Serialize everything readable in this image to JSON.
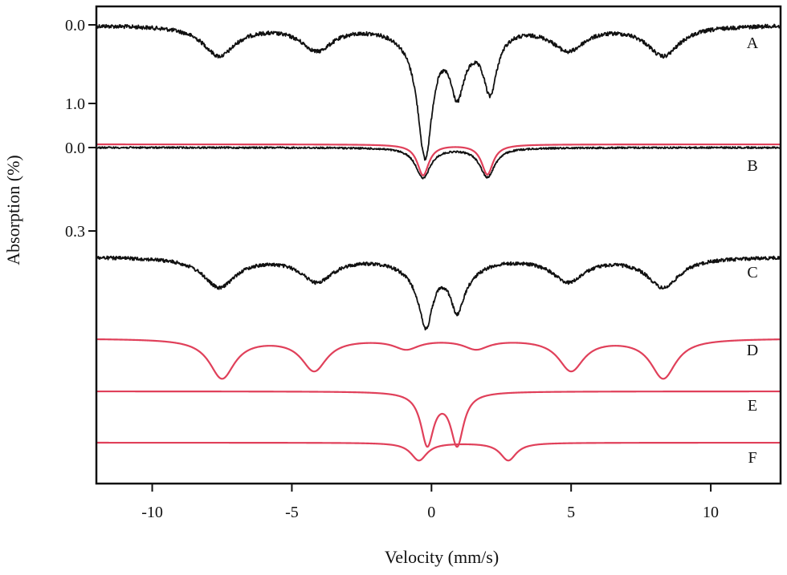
{
  "chart_data": {
    "type": "line",
    "title": "",
    "xlabel": "Velocity (mm/s)",
    "ylabel": "Absorption (%)",
    "xlim": [
      -12,
      12.5
    ],
    "x_ticks": [
      -10,
      -5,
      0,
      5,
      10
    ],
    "x_tick_labels": [
      "-10",
      "-5",
      "0",
      "5",
      "10"
    ],
    "y_scale_markers": [
      {
        "label": "0.0",
        "spectrum": "A",
        "value": 0.0
      },
      {
        "label": "1.0",
        "spectrum": "A",
        "value": 1.0
      },
      {
        "label": "0.0",
        "spectrum": "B",
        "value": 0.0
      },
      {
        "label": "0.3",
        "spectrum": "B",
        "value": 0.3
      }
    ],
    "grid": false,
    "legend": "none",
    "colors": {
      "measured": "#111111",
      "fit": "#e0405a"
    },
    "series": [
      {
        "name": "A",
        "style": "measured",
        "baseline": 0.0,
        "noise": 0.025,
        "unit_scale": 1.0,
        "components": [
          {
            "kind": "sextet",
            "center": 0.37,
            "positions": [
              -7.6,
              -4.1,
              -0.6,
              1.3,
              4.9,
              8.3
            ],
            "depths": [
              0.38,
              0.3,
              0.12,
              0.12,
              0.3,
              0.38
            ],
            "width": 0.7
          },
          {
            "kind": "doublet",
            "center": 0.38,
            "positions": [
              -0.2,
              0.92
            ],
            "depths": [
              1.1,
              0.7
            ],
            "width": 0.3
          },
          {
            "kind": "doublet",
            "center": 1.0,
            "positions": [
              -0.3,
              2.1
            ],
            "depths": [
              0.45,
              0.75
            ],
            "width": 0.3
          }
        ]
      },
      {
        "name": "B",
        "style": "measured",
        "baseline": 0.0,
        "noise": 0.01,
        "unit_scale": 0.3,
        "components": [
          {
            "kind": "doublet",
            "center": 0.9,
            "positions": [
              -0.3,
              2.0
            ],
            "depths": [
              0.36,
              0.35
            ],
            "width": 0.32
          }
        ]
      },
      {
        "name": "B-fit",
        "style": "fit",
        "baseline": 0.0,
        "noise": 0.0,
        "unit_scale": 0.3,
        "components": [
          {
            "kind": "doublet",
            "center": 0.9,
            "positions": [
              -0.3,
              2.0
            ],
            "depths": [
              0.36,
              0.35
            ],
            "width": 0.25
          }
        ]
      },
      {
        "name": "C",
        "style": "measured",
        "baseline": 0.0,
        "noise": 0.022,
        "unit_scale": 1.0,
        "components": [
          {
            "kind": "sextet",
            "center": 0.37,
            "positions": [
              -7.6,
              -4.1,
              -0.6,
              1.3,
              4.9,
              8.3
            ],
            "depths": [
              0.38,
              0.3,
              0.12,
              0.12,
              0.3,
              0.38
            ],
            "width": 0.7
          },
          {
            "kind": "doublet",
            "center": 0.38,
            "positions": [
              -0.2,
              0.92
            ],
            "depths": [
              0.75,
              0.55
            ],
            "width": 0.3
          }
        ]
      },
      {
        "name": "D",
        "style": "fit",
        "baseline": 0.0,
        "noise": 0.0,
        "unit_scale": 1.0,
        "components": [
          {
            "kind": "sextet",
            "center": 0.37,
            "positions": [
              -7.5,
              -4.2,
              -0.9,
              1.6,
              5.0,
              8.3
            ],
            "depths": [
              0.5,
              0.4,
              0.12,
              0.12,
              0.4,
              0.5
            ],
            "width": 0.55
          }
        ]
      },
      {
        "name": "E",
        "style": "fit",
        "baseline": 0.0,
        "noise": 0.0,
        "unit_scale": 1.0,
        "components": [
          {
            "kind": "doublet",
            "center": 0.38,
            "positions": [
              -0.15,
              0.92
            ],
            "depths": [
              0.5,
              0.5
            ],
            "width": 0.28
          }
        ]
      },
      {
        "name": "F",
        "style": "fit",
        "baseline": 0.0,
        "noise": 0.0,
        "unit_scale": 1.0,
        "components": [
          {
            "kind": "doublet",
            "center": 1.2,
            "positions": [
              -0.45,
              2.75
            ],
            "depths": [
              0.2,
              0.2
            ],
            "width": 0.35
          }
        ]
      }
    ],
    "trace_labels": [
      "A",
      "B",
      "C",
      "D",
      "E",
      "F"
    ]
  }
}
